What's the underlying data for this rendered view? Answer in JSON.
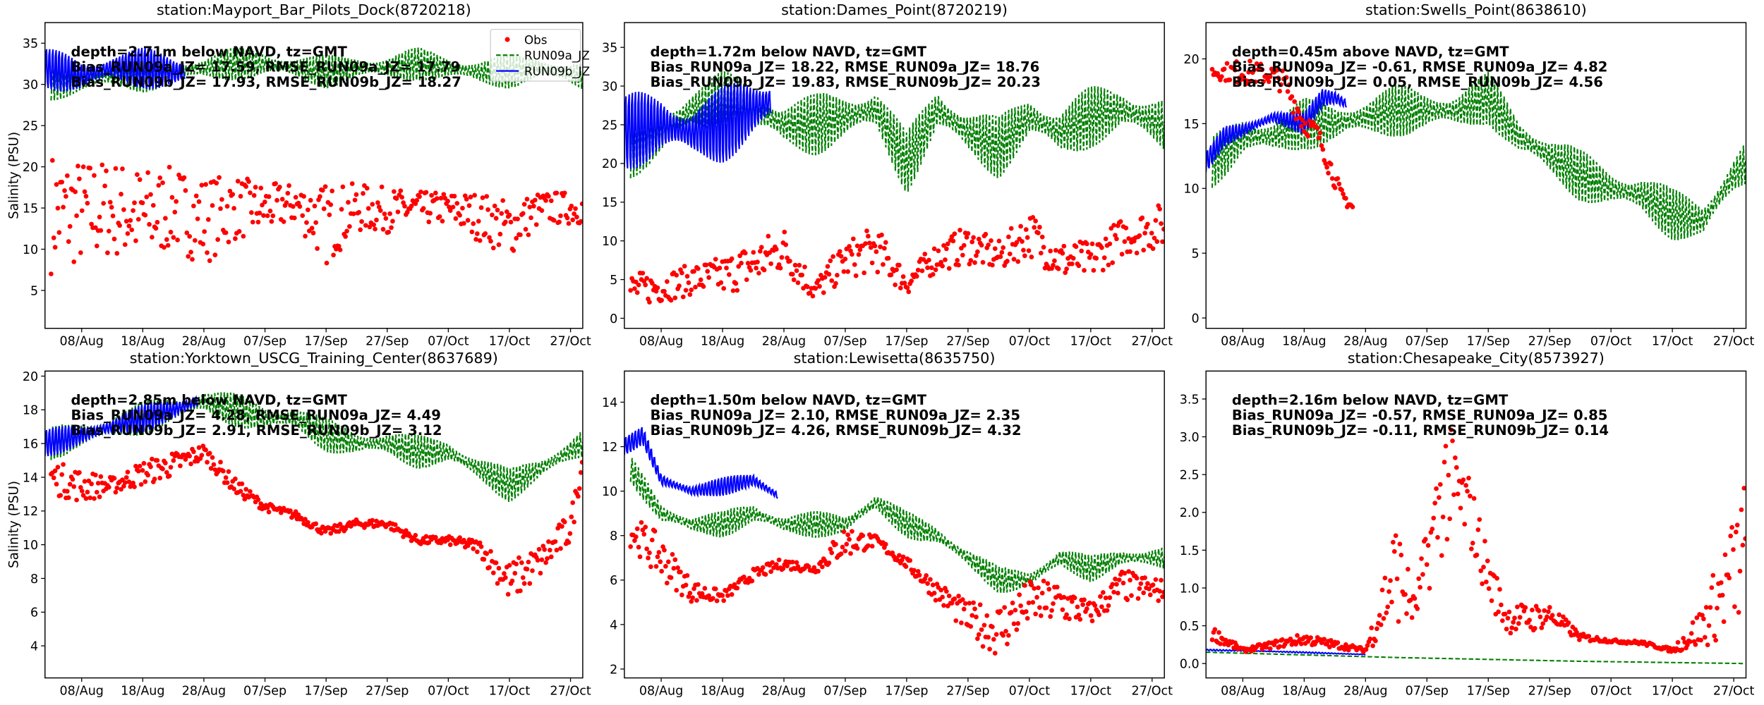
{
  "colors": {
    "obs": "#ff0000",
    "run09a": "#008000",
    "run09b": "#0000ff"
  },
  "legend": {
    "placement": "upper-right of first panel",
    "entries": [
      "Obs",
      "RUN09a_JZ",
      "RUN09b_JZ"
    ]
  },
  "chart_data": [
    {
      "type": "line+scatter",
      "title": "station:Mayport_Bar_Pilots_Dock(8720218)",
      "ylabel": "Salinity (PSU)",
      "annotation": [
        "depth=2.71m below NAVD, tz=GMT",
        "Bias_RUN09a_JZ= 17.59, RMSE_RUN09a_JZ= 17.79",
        "Bias_RUN09b_JZ= 17.93, RMSE_RUN09b_JZ= 18.27"
      ],
      "xlim": [
        "02/Aug",
        "29/Oct"
      ],
      "xticks": [
        "08/Aug",
        "18/Aug",
        "28/Aug",
        "07/Sep",
        "17/Sep",
        "27/Sep",
        "07/Oct",
        "17/Oct",
        "27/Oct"
      ],
      "ylim": [
        0.4,
        37.5
      ],
      "yticks": [
        "5",
        "10",
        "15",
        "20",
        "25",
        "30",
        "35"
      ],
      "show_legend": true,
      "series": [
        {
          "name": "RUN09a_JZ",
          "style": "dashed",
          "tidal_half_range": 2,
          "x": [
            "03/Aug",
            "08/Aug",
            "13/Aug",
            "18/Aug",
            "23/Aug",
            "28/Aug",
            "02/Sep",
            "07/Sep",
            "12/Sep",
            "17/Sep",
            "22/Sep",
            "27/Sep",
            "02/Oct",
            "07/Oct",
            "12/Oct",
            "17/Oct",
            "22/Oct",
            "29/Oct"
          ],
          "y": [
            30,
            30.5,
            31,
            31,
            31.5,
            32,
            32.5,
            32.5,
            32,
            31.5,
            32,
            32,
            32.5,
            32,
            31.5,
            31.5,
            32,
            31
          ]
        },
        {
          "name": "RUN09b_JZ",
          "style": "solid",
          "tidal_half_range": 3,
          "x": [
            "02/Aug",
            "08/Aug",
            "13/Aug",
            "18/Aug",
            "23/Aug",
            "25/Aug"
          ],
          "y": [
            32,
            31,
            32,
            32,
            31.5,
            31.5
          ]
        },
        {
          "name": "Obs",
          "style": "markers",
          "x": [
            "03/Aug",
            "08/Aug",
            "13/Aug",
            "18/Aug",
            "23/Aug",
            "28/Aug",
            "02/Sep",
            "07/Sep",
            "12/Sep",
            "17/Sep",
            "22/Sep",
            "27/Sep",
            "02/Oct",
            "07/Oct",
            "12/Oct",
            "17/Oct",
            "22/Oct",
            "29/Oct"
          ],
          "low": [
            7,
            8,
            9,
            8,
            10,
            8,
            11,
            12,
            13,
            8,
            12,
            12,
            13,
            13,
            11,
            9,
            13,
            13
          ],
          "high": [
            22,
            21,
            21,
            20,
            20,
            19,
            19,
            18,
            18,
            18,
            18,
            17.5,
            17,
            17,
            17,
            16,
            17,
            17
          ]
        }
      ]
    },
    {
      "type": "line+scatter",
      "title": "station:Dames_Point(8720219)",
      "ylabel": "",
      "annotation": [
        "depth=1.72m below NAVD, tz=GMT",
        "Bias_RUN09a_JZ= 18.22, RMSE_RUN09a_JZ= 18.76",
        "Bias_RUN09b_JZ= 19.83, RMSE_RUN09b_JZ= 20.23"
      ],
      "xlim": [
        "02/Aug",
        "29/Oct"
      ],
      "xticks": [
        "08/Aug",
        "18/Aug",
        "28/Aug",
        "07/Sep",
        "17/Sep",
        "27/Sep",
        "07/Oct",
        "17/Oct",
        "27/Oct"
      ],
      "ylim": [
        -1.3,
        38.2
      ],
      "yticks": [
        "0",
        "5",
        "10",
        "15",
        "20",
        "25",
        "30",
        "35"
      ],
      "show_legend": false,
      "series": [
        {
          "name": "RUN09a_JZ",
          "style": "dashed",
          "tidal_half_range": 4,
          "x": [
            "03/Aug",
            "08/Aug",
            "13/Aug",
            "18/Aug",
            "23/Aug",
            "28/Aug",
            "02/Sep",
            "07/Sep",
            "12/Sep",
            "17/Sep",
            "22/Sep",
            "27/Sep",
            "02/Oct",
            "07/Oct",
            "12/Oct",
            "17/Oct",
            "22/Oct",
            "29/Oct"
          ],
          "y": [
            22,
            24,
            27,
            28,
            27,
            25,
            25,
            26,
            27,
            20,
            27,
            24,
            22,
            26,
            24,
            26,
            27,
            25
          ]
        },
        {
          "name": "RUN09b_JZ",
          "style": "solid",
          "tidal_half_range": 6,
          "x": [
            "02/Aug",
            "08/Aug",
            "13/Aug",
            "18/Aug",
            "23/Aug",
            "26/Aug"
          ],
          "y": [
            24,
            25,
            24,
            25,
            27,
            28
          ]
        },
        {
          "name": "Obs",
          "style": "markers",
          "x": [
            "03/Aug",
            "08/Aug",
            "13/Aug",
            "18/Aug",
            "23/Aug",
            "28/Aug",
            "02/Sep",
            "07/Sep",
            "12/Sep",
            "17/Sep",
            "22/Sep",
            "27/Sep",
            "02/Oct",
            "07/Oct",
            "12/Oct",
            "17/Oct",
            "22/Oct",
            "29/Oct"
          ],
          "low": [
            1.5,
            2,
            3,
            3,
            4,
            6,
            2,
            5,
            6,
            3,
            6,
            7,
            6,
            8,
            5,
            5,
            8,
            9
          ],
          "high": [
            6,
            6,
            7,
            8,
            10,
            12,
            5,
            10,
            12,
            6,
            10,
            12,
            10,
            14,
            10,
            10,
            13,
            15
          ]
        }
      ]
    },
    {
      "type": "line+scatter",
      "title": "station:Swells_Point(8638610)",
      "ylabel": "",
      "annotation": [
        "depth=0.45m above NAVD, tz=GMT",
        "Bias_RUN09a_JZ= -0.61, RMSE_RUN09a_JZ=  4.82",
        "Bias_RUN09b_JZ=  0.05, RMSE_RUN09b_JZ=  4.56"
      ],
      "xlim": [
        "02/Aug",
        "29/Oct"
      ],
      "xticks": [
        "08/Aug",
        "18/Aug",
        "28/Aug",
        "07/Sep",
        "17/Sep",
        "27/Sep",
        "07/Oct",
        "17/Oct",
        "27/Oct"
      ],
      "ylim": [
        -0.8,
        22.8
      ],
      "yticks": [
        "0",
        "5",
        "10",
        "15",
        "20"
      ],
      "show_legend": false,
      "series": [
        {
          "name": "RUN09a_JZ",
          "style": "dashed",
          "tidal_half_range": 2,
          "x": [
            "03/Aug",
            "08/Aug",
            "13/Aug",
            "18/Aug",
            "23/Aug",
            "28/Aug",
            "02/Sep",
            "07/Sep",
            "12/Sep",
            "17/Sep",
            "22/Sep",
            "27/Sep",
            "02/Oct",
            "07/Oct",
            "12/Oct",
            "17/Oct",
            "22/Oct",
            "27/Oct",
            "29/Oct"
          ],
          "y": [
            12,
            14,
            14,
            15,
            15,
            15.5,
            16,
            16,
            16,
            17,
            14,
            12.5,
            11,
            10,
            9.5,
            8,
            7.5,
            11,
            12
          ]
        },
        {
          "name": "RUN09b_JZ",
          "style": "solid",
          "tidal_half_range": 1,
          "x": [
            "02/Aug",
            "05/Aug",
            "08/Aug",
            "13/Aug",
            "18/Aug",
            "21/Aug",
            "23/Aug",
            "25/Aug"
          ],
          "y": [
            12,
            14,
            14.5,
            15.5,
            15,
            17,
            17,
            16.5
          ]
        },
        {
          "name": "Obs",
          "style": "markers",
          "x": [
            "03/Aug",
            "08/Aug",
            "13/Aug",
            "15/Aug",
            "18/Aug",
            "20/Aug",
            "22/Aug",
            "24/Aug",
            "26/Aug"
          ],
          "low": [
            18.5,
            18,
            18,
            17,
            14,
            14,
            11,
            9,
            8
          ],
          "high": [
            19.5,
            20,
            19.5,
            19,
            16,
            15,
            13,
            10,
            9
          ]
        }
      ]
    },
    {
      "type": "line+scatter",
      "title": "station:Yorktown_USCG_Training_Center(8637689)",
      "ylabel": "Salinity (PSU)",
      "annotation": [
        "depth=2.85m below NAVD, tz=GMT",
        "Bias_RUN09a_JZ=  4.28, RMSE_RUN09a_JZ=  4.49",
        "Bias_RUN09b_JZ=  2.91, RMSE_RUN09b_JZ=  3.12"
      ],
      "xlim": [
        "02/Aug",
        "29/Oct"
      ],
      "xticks": [
        "08/Aug",
        "18/Aug",
        "28/Aug",
        "07/Sep",
        "17/Sep",
        "27/Sep",
        "07/Oct",
        "17/Oct",
        "27/Oct"
      ],
      "ylim": [
        2.1,
        20.3
      ],
      "yticks": [
        "4",
        "6",
        "8",
        "10",
        "12",
        "14",
        "16",
        "18",
        "20"
      ],
      "show_legend": false,
      "series": [
        {
          "name": "RUN09a_JZ",
          "style": "dashed",
          "tidal_half_range": 1,
          "x": [
            "03/Aug",
            "08/Aug",
            "13/Aug",
            "18/Aug",
            "23/Aug",
            "28/Aug",
            "02/Sep",
            "07/Sep",
            "12/Sep",
            "17/Sep",
            "22/Sep",
            "27/Sep",
            "02/Oct",
            "07/Oct",
            "12/Oct",
            "17/Oct",
            "22/Oct",
            "29/Oct"
          ],
          "y": [
            16,
            16.5,
            17,
            17.5,
            18,
            18.5,
            18,
            17.5,
            17.5,
            16.5,
            16,
            16,
            15.5,
            15.5,
            14.5,
            13.5,
            14.5,
            16
          ]
        },
        {
          "name": "RUN09b_JZ",
          "style": "solid",
          "tidal_half_range": 1,
          "x": [
            "02/Aug",
            "08/Aug",
            "13/Aug",
            "18/Aug",
            "23/Aug",
            "27/Aug"
          ],
          "y": [
            16,
            16.5,
            17,
            17.5,
            18,
            18.5
          ]
        },
        {
          "name": "Obs",
          "style": "markers",
          "x": [
            "03/Aug",
            "08/Aug",
            "13/Aug",
            "18/Aug",
            "23/Aug",
            "28/Aug",
            "02/Sep",
            "07/Sep",
            "12/Sep",
            "17/Sep",
            "22/Sep",
            "27/Sep",
            "02/Oct",
            "07/Oct",
            "12/Oct",
            "17/Oct",
            "22/Oct",
            "27/Oct",
            "29/Oct"
          ],
          "low": [
            13,
            12.5,
            13,
            13.5,
            14,
            15,
            13,
            12,
            11.5,
            10.5,
            11,
            11,
            10,
            10,
            9.5,
            6.5,
            8,
            10,
            14.5
          ],
          "high": [
            15,
            14.5,
            14,
            15,
            15.5,
            16,
            14,
            12.5,
            12,
            11,
            11.5,
            11.5,
            10.5,
            10.5,
            10.3,
            9,
            10,
            12,
            15.5
          ]
        }
      ]
    },
    {
      "type": "line+scatter",
      "title": "station:Lewisetta(8635750)",
      "ylabel": "",
      "annotation": [
        "depth=1.50m below NAVD, tz=GMT",
        "Bias_RUN09a_JZ=  2.10, RMSE_RUN09a_JZ=  2.35",
        "Bias_RUN09b_JZ=  4.26, RMSE_RUN09b_JZ=  4.32"
      ],
      "xlim": [
        "02/Aug",
        "29/Oct"
      ],
      "xticks": [
        "08/Aug",
        "18/Aug",
        "28/Aug",
        "07/Sep",
        "17/Sep",
        "27/Sep",
        "07/Oct",
        "17/Oct",
        "27/Oct"
      ],
      "ylim": [
        1.6,
        15.4
      ],
      "yticks": [
        "2",
        "4",
        "6",
        "8",
        "10",
        "12",
        "14"
      ],
      "show_legend": false,
      "series": [
        {
          "name": "RUN09a_JZ",
          "style": "dashed",
          "tidal_half_range": 0.6,
          "x": [
            "03/Aug",
            "08/Aug",
            "13/Aug",
            "18/Aug",
            "23/Aug",
            "28/Aug",
            "02/Sep",
            "07/Sep",
            "12/Sep",
            "17/Sep",
            "22/Sep",
            "27/Sep",
            "02/Oct",
            "07/Oct",
            "12/Oct",
            "17/Oct",
            "22/Oct",
            "29/Oct"
          ],
          "y": [
            11,
            9,
            8.5,
            8.5,
            9,
            8.5,
            8.5,
            8.5,
            9.5,
            8.5,
            8,
            7,
            6,
            6,
            7,
            6.5,
            7,
            7
          ]
        },
        {
          "name": "RUN09b_JZ",
          "style": "solid",
          "tidal_half_range": 0.5,
          "x": [
            "02/Aug",
            "05/Aug",
            "08/Aug",
            "13/Aug",
            "18/Aug",
            "23/Aug",
            "27/Aug"
          ],
          "y": [
            12,
            12.5,
            10.5,
            10,
            10.2,
            10.5,
            9.8
          ]
        },
        {
          "name": "Obs",
          "style": "markers",
          "x": [
            "03/Aug",
            "08/Aug",
            "13/Aug",
            "18/Aug",
            "23/Aug",
            "28/Aug",
            "02/Sep",
            "07/Sep",
            "12/Sep",
            "17/Sep",
            "22/Sep",
            "27/Sep",
            "02/Oct",
            "07/Oct",
            "12/Oct",
            "17/Oct",
            "22/Oct",
            "29/Oct"
          ],
          "low": [
            7.5,
            6,
            5,
            5,
            6,
            6.5,
            6.3,
            7,
            7.5,
            6.5,
            5,
            3.5,
            2.5,
            4,
            4,
            4,
            5,
            5
          ],
          "high": [
            9,
            8,
            6,
            5.5,
            6.5,
            7,
            6.7,
            8.5,
            8,
            7,
            6,
            5,
            5,
            6,
            6,
            5,
            6.5,
            6
          ]
        }
      ]
    },
    {
      "type": "line+scatter",
      "title": "station:Chesapeake_City(8573927)",
      "ylabel": "",
      "annotation": [
        "depth=2.16m below NAVD, tz=GMT",
        "Bias_RUN09a_JZ= -0.57, RMSE_RUN09a_JZ=  0.85",
        "Bias_RUN09b_JZ= -0.11, RMSE_RUN09b_JZ=  0.14"
      ],
      "xlim": [
        "02/Aug",
        "29/Oct"
      ],
      "xticks": [
        "08/Aug",
        "18/Aug",
        "28/Aug",
        "07/Sep",
        "17/Sep",
        "27/Sep",
        "07/Oct",
        "17/Oct",
        "27/Oct"
      ],
      "ylim": [
        -0.19,
        3.87
      ],
      "yticks": [
        "0.0",
        "0.5",
        "1.0",
        "1.5",
        "2.0",
        "2.5",
        "3.0",
        "3.5"
      ],
      "show_legend": false,
      "series": [
        {
          "name": "RUN09a_JZ",
          "style": "dashed",
          "tidal_half_range": 0,
          "x": [
            "02/Aug",
            "02/Sep",
            "02/Oct",
            "29/Oct"
          ],
          "y": [
            0.15,
            0.08,
            0.03,
            0.0
          ]
        },
        {
          "name": "RUN09b_JZ",
          "style": "solid",
          "tidal_half_range": 0.01,
          "x": [
            "02/Aug",
            "13/Aug",
            "28/Aug"
          ],
          "y": [
            0.18,
            0.16,
            0.12
          ]
        },
        {
          "name": "Obs",
          "style": "markers",
          "x": [
            "03/Aug",
            "08/Aug",
            "13/Aug",
            "18/Aug",
            "23/Aug",
            "28/Aug",
            "02/Sep",
            "05/Sep",
            "10/Sep",
            "14/Sep",
            "17/Sep",
            "20/Sep",
            "24/Sep",
            "27/Sep",
            "02/Oct",
            "07/Oct",
            "12/Oct",
            "17/Oct",
            "22/Oct",
            "29/Oct"
          ],
          "low": [
            0.3,
            0.15,
            0.2,
            0.25,
            0.2,
            0.15,
            0.5,
            0.5,
            1.5,
            1.5,
            0.8,
            0.4,
            0.4,
            0.5,
            0.3,
            0.28,
            0.25,
            0.15,
            0.2,
            0.5
          ],
          "high": [
            0.5,
            0.2,
            0.3,
            0.4,
            0.3,
            0.2,
            2.0,
            0.9,
            3.3,
            2.5,
            1.5,
            0.8,
            0.8,
            0.8,
            0.4,
            0.32,
            0.3,
            0.2,
            0.8,
            2.5
          ]
        }
      ]
    }
  ]
}
